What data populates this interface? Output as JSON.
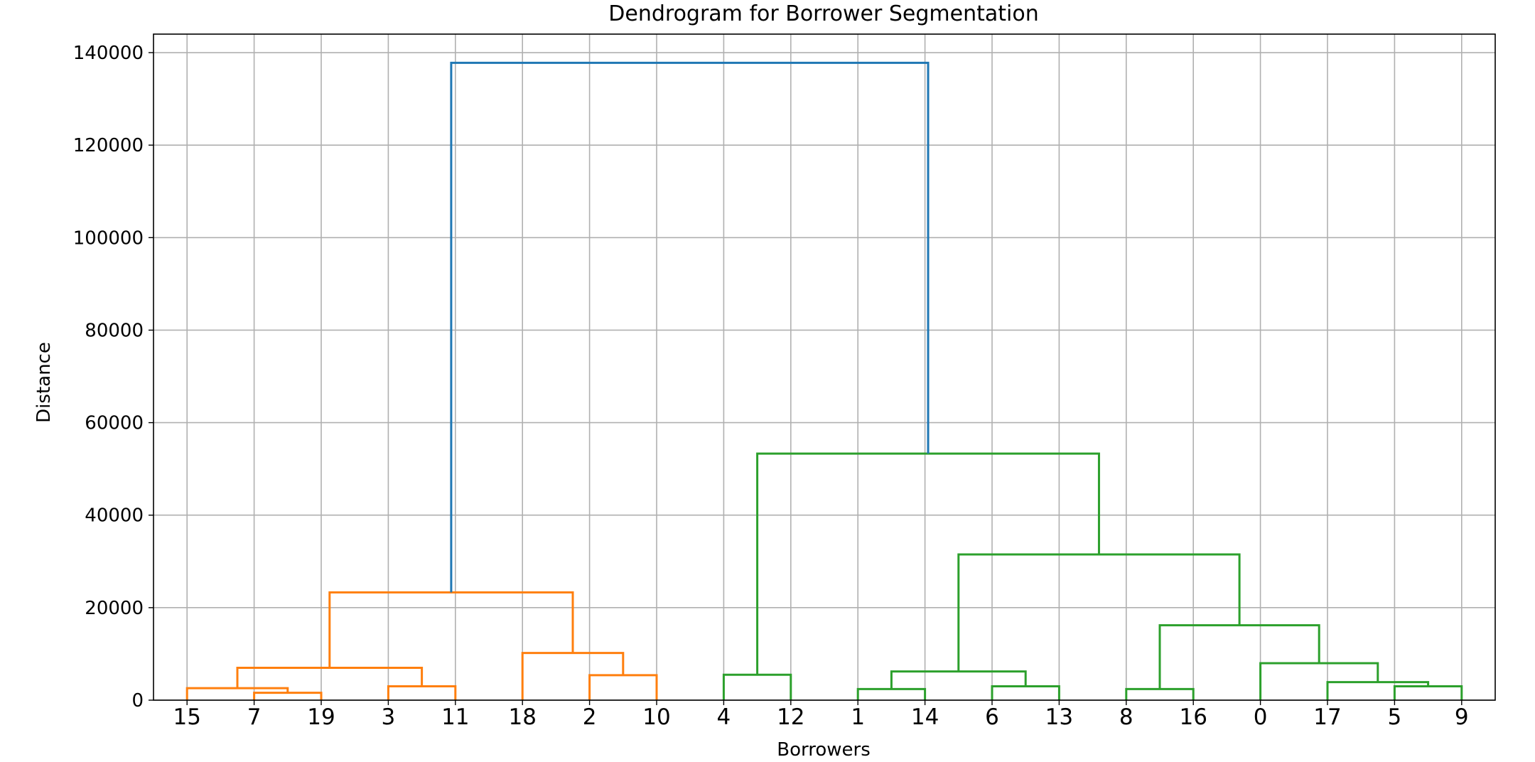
{
  "chart_data": {
    "type": "dendrogram",
    "title": "Dendrogram for Borrower Segmentation",
    "xlabel": "Borrowers",
    "ylabel": "Distance",
    "ylim": [
      0,
      144000
    ],
    "yticks": [
      0,
      20000,
      40000,
      60000,
      80000,
      100000,
      120000,
      140000
    ],
    "grid": true,
    "leaves": [
      "15",
      "7",
      "19",
      "3",
      "11",
      "18",
      "2",
      "10",
      "4",
      "12",
      "1",
      "14",
      "6",
      "13",
      "8",
      "16",
      "0",
      "17",
      "5",
      "9"
    ],
    "colors": {
      "orange": "#ff7f0e",
      "green": "#2ca02c",
      "blue": "#1f77b4"
    },
    "links": [
      {
        "a": "7",
        "b": "19",
        "height": 1600,
        "color": "orange"
      },
      {
        "a": "15",
        "b": "7+19",
        "height": 2600,
        "color": "orange"
      },
      {
        "a": "3",
        "b": "11",
        "height": 3000,
        "color": "orange"
      },
      {
        "a": "15+7+19",
        "b": "3+11",
        "height": 7000,
        "color": "orange"
      },
      {
        "a": "2",
        "b": "10",
        "height": 5400,
        "color": "orange"
      },
      {
        "a": "18",
        "b": "2+10",
        "height": 10200,
        "color": "orange"
      },
      {
        "a": "15+7+19+3+11",
        "b": "18+2+10",
        "height": 23300,
        "color": "orange"
      },
      {
        "a": "4",
        "b": "12",
        "height": 5500,
        "color": "green"
      },
      {
        "a": "1",
        "b": "14",
        "height": 2400,
        "color": "green"
      },
      {
        "a": "6",
        "b": "13",
        "height": 3000,
        "color": "green"
      },
      {
        "a": "1+14",
        "b": "6+13",
        "height": 6200,
        "color": "green"
      },
      {
        "a": "8",
        "b": "16",
        "height": 2400,
        "color": "green"
      },
      {
        "a": "5",
        "b": "9",
        "height": 3000,
        "color": "green"
      },
      {
        "a": "17",
        "b": "5+9",
        "height": 3900,
        "color": "green"
      },
      {
        "a": "0",
        "b": "17+5+9",
        "height": 8000,
        "color": "green"
      },
      {
        "a": "8+16",
        "b": "0+17+5+9",
        "height": 16200,
        "color": "green"
      },
      {
        "a": "1+14+6+13",
        "b": "8+16+0+17+5+9",
        "height": 31500,
        "color": "green"
      },
      {
        "a": "4+12",
        "b": "1+14+6+13+8+16+0+17+5+9",
        "height": 53300,
        "color": "green"
      },
      {
        "a": "orange-cluster",
        "b": "green-cluster",
        "height": 137800,
        "color": "blue"
      }
    ]
  }
}
